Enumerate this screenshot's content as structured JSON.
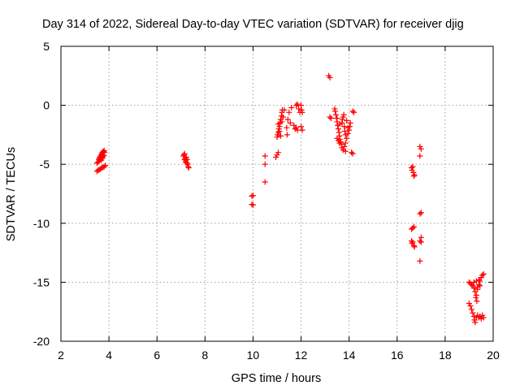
{
  "chart_data": {
    "type": "scatter",
    "title": "Day 314 of 2022, Sidereal Day-to-day VTEC variation (SDTVAR) for receiver djig",
    "xlabel": "GPS time / hours",
    "ylabel": "SDTVAR / TECUs",
    "xlim": [
      2,
      20
    ],
    "ylim": [
      -20,
      5
    ],
    "xticks": [
      2,
      4,
      6,
      8,
      10,
      12,
      14,
      16,
      18,
      20
    ],
    "yticks": [
      5,
      0,
      -5,
      -10,
      -15,
      -20
    ],
    "xtick_labels": [
      "2",
      "4",
      "6",
      "8",
      "10",
      "12",
      "14",
      "16",
      "18",
      "20"
    ],
    "ytick_labels": [
      "5",
      "0",
      "-5",
      "-10",
      "-15",
      "-20"
    ],
    "grid": true,
    "marker": "+",
    "color": "#ff0000",
    "series": [
      {
        "name": "SDTVAR",
        "points": [
          [
            3.5,
            -5.6
          ],
          [
            3.55,
            -5.5
          ],
          [
            3.6,
            -5.45
          ],
          [
            3.65,
            -5.4
          ],
          [
            3.7,
            -5.3
          ],
          [
            3.75,
            -5.25
          ],
          [
            3.8,
            -5.2
          ],
          [
            3.85,
            -5.1
          ],
          [
            3.5,
            -4.9
          ],
          [
            3.55,
            -4.8
          ],
          [
            3.58,
            -4.6
          ],
          [
            3.6,
            -4.5
          ],
          [
            3.62,
            -4.4
          ],
          [
            3.65,
            -4.3
          ],
          [
            3.68,
            -4.2
          ],
          [
            3.7,
            -4.1
          ],
          [
            3.72,
            -4.0
          ],
          [
            3.75,
            -3.95
          ],
          [
            3.78,
            -3.9
          ],
          [
            3.8,
            -3.85
          ],
          [
            3.82,
            -4.0
          ],
          [
            3.6,
            -4.7
          ],
          [
            3.65,
            -4.55
          ],
          [
            3.7,
            -4.45
          ],
          [
            3.75,
            -4.35
          ],
          [
            3.8,
            -4.25
          ],
          [
            3.68,
            -4.65
          ],
          [
            3.73,
            -4.5
          ],
          [
            7.1,
            -4.3
          ],
          [
            7.12,
            -4.2
          ],
          [
            7.15,
            -4.1
          ],
          [
            7.15,
            -4.6
          ],
          [
            7.18,
            -4.5
          ],
          [
            7.2,
            -4.7
          ],
          [
            7.22,
            -4.4
          ],
          [
            7.25,
            -4.9
          ],
          [
            7.28,
            -5.0
          ],
          [
            7.3,
            -5.2
          ],
          [
            7.32,
            -5.3
          ],
          [
            7.2,
            -4.85
          ],
          [
            7.25,
            -4.6
          ],
          [
            9.95,
            -7.7
          ],
          [
            10.0,
            -7.65
          ],
          [
            9.95,
            -8.4
          ],
          [
            10.0,
            -8.45
          ],
          [
            10.5,
            -4.3
          ],
          [
            10.5,
            -5.0
          ],
          [
            10.5,
            -6.5
          ],
          [
            10.95,
            -4.4
          ],
          [
            11.0,
            -4.2
          ],
          [
            11.05,
            -4.0
          ],
          [
            11.0,
            -2.7
          ],
          [
            11.02,
            -2.5
          ],
          [
            11.05,
            -2.3
          ],
          [
            11.08,
            -2.0
          ],
          [
            11.1,
            -1.8
          ],
          [
            11.12,
            -1.5
          ],
          [
            11.15,
            -1.2
          ],
          [
            11.18,
            -0.9
          ],
          [
            11.2,
            -0.6
          ],
          [
            11.22,
            -0.4
          ],
          [
            11.05,
            -1.6
          ],
          [
            11.1,
            -2.2
          ],
          [
            11.15,
            -2.6
          ],
          [
            11.2,
            -1.4
          ],
          [
            11.25,
            -1.0
          ],
          [
            11.3,
            -0.4
          ],
          [
            11.4,
            -1.9
          ],
          [
            11.42,
            -2.5
          ],
          [
            11.45,
            -1.2
          ],
          [
            11.5,
            -0.6
          ],
          [
            11.55,
            -1.5
          ],
          [
            11.6,
            -0.2
          ],
          [
            11.7,
            -1.7
          ],
          [
            11.75,
            -2.0
          ],
          [
            11.8,
            0.0
          ],
          [
            11.85,
            0.1
          ],
          [
            11.9,
            -0.3
          ],
          [
            11.8,
            -1.9
          ],
          [
            11.85,
            -2.1
          ],
          [
            11.95,
            -0.6
          ],
          [
            12.0,
            -1.8
          ],
          [
            12.05,
            -2.1
          ],
          [
            12.0,
            0.0
          ],
          [
            12.02,
            -0.4
          ],
          [
            12.05,
            -0.6
          ],
          [
            13.15,
            2.5
          ],
          [
            13.2,
            2.35
          ],
          [
            13.2,
            -1.0
          ],
          [
            13.25,
            -1.1
          ],
          [
            13.4,
            -0.3
          ],
          [
            13.42,
            -0.5
          ],
          [
            13.45,
            -0.8
          ],
          [
            13.48,
            -1.1
          ],
          [
            13.5,
            -1.4
          ],
          [
            13.52,
            -1.7
          ],
          [
            13.55,
            -2.0
          ],
          [
            13.58,
            -2.3
          ],
          [
            13.6,
            -2.6
          ],
          [
            13.62,
            -2.9
          ],
          [
            13.65,
            -3.1
          ],
          [
            13.68,
            -3.3
          ],
          [
            13.5,
            -2.8
          ],
          [
            13.55,
            -3.0
          ],
          [
            13.6,
            -3.2
          ],
          [
            13.7,
            -1.5
          ],
          [
            13.72,
            -1.2
          ],
          [
            13.75,
            -1.0
          ],
          [
            13.78,
            -0.8
          ],
          [
            13.8,
            -1.8
          ],
          [
            13.82,
            -2.2
          ],
          [
            13.85,
            -2.5
          ],
          [
            13.7,
            -3.6
          ],
          [
            13.75,
            -3.8
          ],
          [
            13.8,
            -3.5
          ],
          [
            13.85,
            -3.2
          ],
          [
            13.9,
            -2.8
          ],
          [
            13.95,
            -2.4
          ],
          [
            14.0,
            -2.1
          ],
          [
            14.02,
            -1.8
          ],
          [
            14.05,
            -1.5
          ],
          [
            14.1,
            -4.0
          ],
          [
            14.15,
            -4.1
          ],
          [
            14.15,
            -0.5
          ],
          [
            14.2,
            -0.6
          ],
          [
            13.5,
            -1.1
          ],
          [
            13.62,
            -1.6
          ],
          [
            13.9,
            -1.3
          ],
          [
            13.95,
            -1.9
          ],
          [
            13.85,
            -3.9
          ],
          [
            16.6,
            -5.3
          ],
          [
            16.62,
            -5.5
          ],
          [
            16.65,
            -5.2
          ],
          [
            16.68,
            -5.7
          ],
          [
            16.7,
            -6.0
          ],
          [
            16.72,
            -5.9
          ],
          [
            16.6,
            -10.5
          ],
          [
            16.65,
            -10.4
          ],
          [
            16.7,
            -10.3
          ],
          [
            16.6,
            -11.5
          ],
          [
            16.62,
            -11.7
          ],
          [
            16.65,
            -11.6
          ],
          [
            16.7,
            -11.9
          ],
          [
            16.72,
            -12.0
          ],
          [
            16.95,
            -3.5
          ],
          [
            17.0,
            -3.7
          ],
          [
            16.95,
            -4.3
          ],
          [
            16.95,
            -9.2
          ],
          [
            17.0,
            -9.1
          ],
          [
            17.0,
            -11.2
          ],
          [
            16.95,
            -11.5
          ],
          [
            17.0,
            -11.6
          ],
          [
            16.95,
            -13.2
          ],
          [
            19.0,
            -15.0
          ],
          [
            19.05,
            -15.1
          ],
          [
            19.1,
            -15.2
          ],
          [
            19.15,
            -15.3
          ],
          [
            19.2,
            -15.5
          ],
          [
            19.25,
            -15.8
          ],
          [
            19.3,
            -16.1
          ],
          [
            19.35,
            -15.6
          ],
          [
            19.4,
            -15.2
          ],
          [
            19.45,
            -14.9
          ],
          [
            19.5,
            -14.6
          ],
          [
            19.55,
            -14.4
          ],
          [
            19.6,
            -14.3
          ],
          [
            19.2,
            -15.0
          ],
          [
            19.3,
            -14.9
          ],
          [
            19.35,
            -15.4
          ],
          [
            19.4,
            -14.8
          ],
          [
            19.45,
            -15.3
          ],
          [
            19.0,
            -16.8
          ],
          [
            19.05,
            -17.0
          ],
          [
            19.1,
            -17.3
          ],
          [
            19.15,
            -17.6
          ],
          [
            19.2,
            -17.9
          ],
          [
            19.22,
            -18.2
          ],
          [
            19.25,
            -18.4
          ],
          [
            19.3,
            -18.0
          ],
          [
            19.35,
            -17.8
          ],
          [
            19.4,
            -18.0
          ],
          [
            19.45,
            -17.9
          ],
          [
            19.5,
            -18.1
          ],
          [
            19.55,
            -17.8
          ],
          [
            19.6,
            -18.0
          ],
          [
            19.28,
            -16.3
          ],
          [
            19.32,
            -16.6
          ]
        ]
      }
    ]
  }
}
